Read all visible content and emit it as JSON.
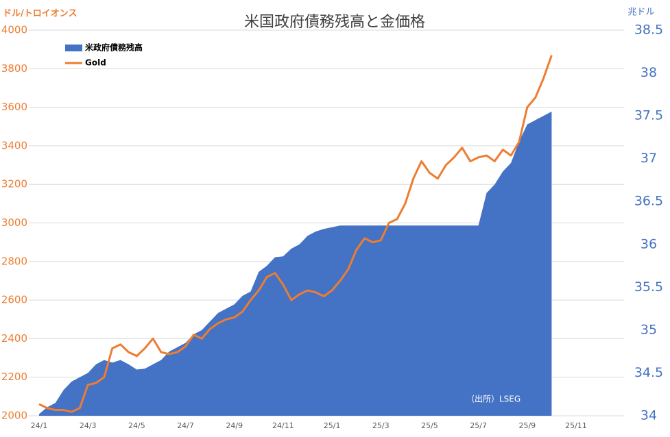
{
  "chart_data": {
    "type": "combo",
    "title": "米国政府債務残高と金価格",
    "y_label": "ドル/トロイオンス",
    "y2_label": "兆ドル",
    "annotation": "（出所）LSEG",
    "categories": [
      "24/1",
      null,
      null,
      null,
      null,
      null,
      "24/3",
      null,
      null,
      null,
      null,
      null,
      "24/5",
      null,
      null,
      null,
      null,
      null,
      "24/7",
      null,
      null,
      null,
      null,
      null,
      "24/9",
      null,
      null,
      null,
      null,
      null,
      "24/11",
      null,
      null,
      null,
      null,
      null,
      "25/1",
      null,
      null,
      null,
      null,
      null,
      "25/3",
      null,
      null,
      null,
      null,
      null,
      "25/5",
      null,
      null,
      null,
      null,
      null,
      "25/7",
      null,
      null,
      null,
      null,
      null,
      "25/9",
      null,
      null,
      null,
      null,
      null,
      "25/11"
    ],
    "series": [
      {
        "name": "米政府債務残高",
        "type": "area",
        "axis": "y2",
        "color": "#4472c4",
        "values": [
          34.02,
          34.1,
          34.15,
          34.3,
          34.4,
          34.45,
          34.5,
          34.6,
          34.65,
          34.62,
          34.65,
          34.6,
          34.54,
          34.55,
          34.6,
          34.65,
          34.75,
          34.8,
          34.85,
          34.95,
          35.0,
          35.1,
          35.2,
          35.25,
          35.3,
          35.4,
          35.45,
          35.68,
          35.75,
          35.85,
          35.86,
          35.95,
          36.0,
          36.1,
          36.15,
          36.18,
          36.2,
          36.22,
          36.22,
          36.22,
          36.22,
          36.22,
          36.22,
          36.22,
          36.22,
          36.22,
          36.22,
          36.22,
          36.22,
          36.22,
          36.22,
          36.22,
          36.22,
          36.22,
          36.22,
          36.6,
          36.7,
          36.85,
          36.95,
          37.2,
          37.4,
          37.45,
          37.5,
          37.55,
          null,
          null,
          null
        ]
      },
      {
        "name": "Gold",
        "type": "line",
        "color": "#ed7d31",
        "values": [
          2060,
          2040,
          2030,
          2030,
          2020,
          2040,
          2160,
          2170,
          2200,
          2350,
          2370,
          2330,
          2310,
          2350,
          2400,
          2330,
          2320,
          2330,
          2360,
          2420,
          2400,
          2450,
          2480,
          2500,
          2510,
          2540,
          2600,
          2650,
          2720,
          2740,
          2680,
          2600,
          2630,
          2650,
          2640,
          2620,
          2650,
          2700,
          2760,
          2860,
          2920,
          2900,
          2910,
          3000,
          3020,
          3100,
          3230,
          3320,
          3260,
          3230,
          3300,
          3340,
          3390,
          3320,
          3340,
          3350,
          3320,
          3380,
          3350,
          3420,
          3600,
          3650,
          3750,
          3870,
          null,
          null,
          null
        ]
      }
    ],
    "ylim": [
      2000,
      4000
    ],
    "yticks": [
      2000,
      2200,
      2400,
      2600,
      2800,
      3000,
      3200,
      3400,
      3600,
      3800,
      4000
    ],
    "y2lim": [
      34,
      38.5
    ],
    "y2ticks": [
      34,
      34.5,
      35,
      35.5,
      36,
      36.5,
      37,
      37.5,
      38,
      38.5
    ],
    "grid": true
  }
}
